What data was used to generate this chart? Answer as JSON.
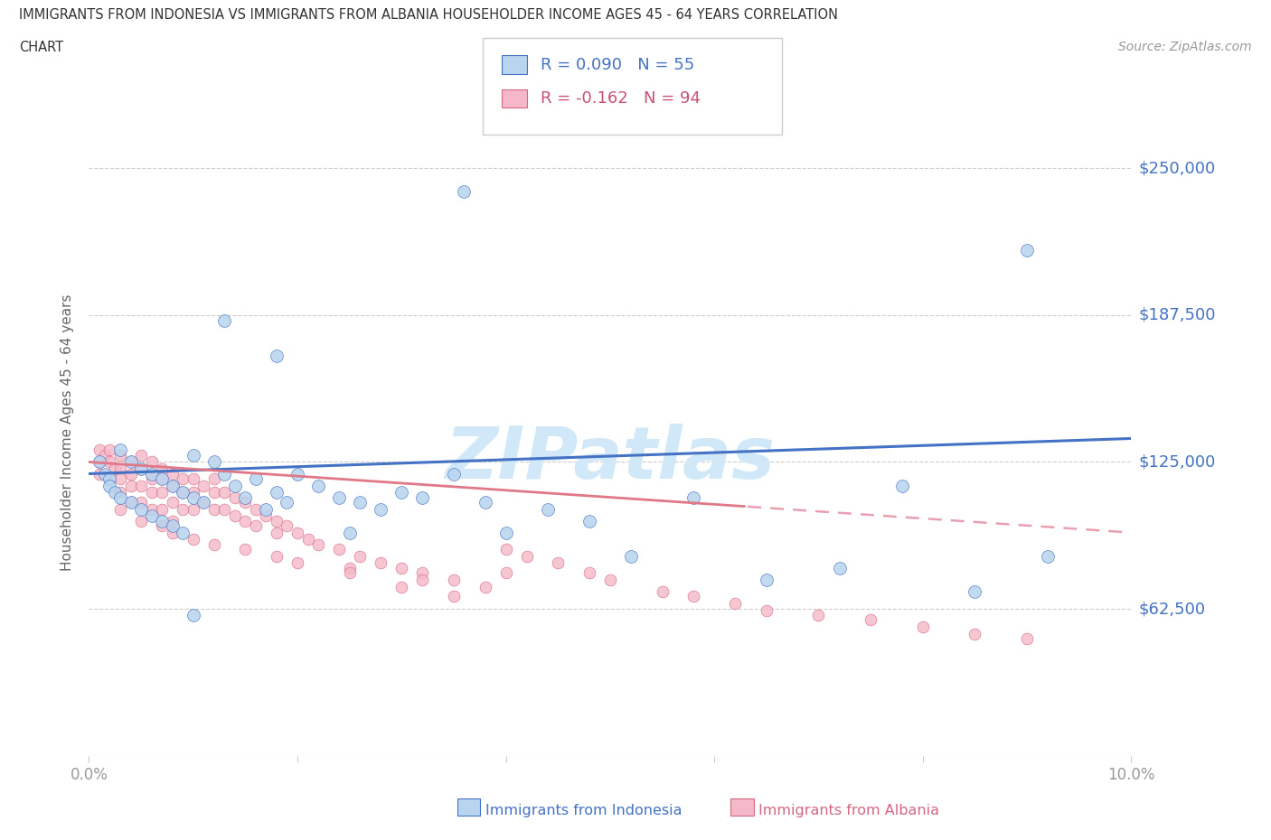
{
  "title_line1": "IMMIGRANTS FROM INDONESIA VS IMMIGRANTS FROM ALBANIA HOUSEHOLDER INCOME AGES 45 - 64 YEARS CORRELATION",
  "title_line2": "CHART",
  "source": "Source: ZipAtlas.com",
  "ylabel": "Householder Income Ages 45 - 64 years",
  "xlim": [
    0.0,
    0.1
  ],
  "ylim": [
    0,
    275000
  ],
  "ytick_vals": [
    0,
    62500,
    125000,
    187500,
    250000
  ],
  "ytick_labels": [
    "",
    "$62,500",
    "$125,000",
    "$187,500",
    "$250,000"
  ],
  "xtick_vals": [
    0.0,
    0.02,
    0.04,
    0.06,
    0.08,
    0.1
  ],
  "xtick_labels": [
    "0.0%",
    "",
    "",
    "",
    "",
    "10.0%"
  ],
  "R_indonesia": 0.09,
  "N_indonesia": 55,
  "R_albania": -0.162,
  "N_albania": 94,
  "color_indo_face": "#b8d4ee",
  "color_indo_edge": "#4472c4",
  "color_alba_face": "#f5b8c8",
  "color_alba_edge": "#d46880",
  "line_indo": "#4472c4",
  "line_alba_solid": "#e07888",
  "line_alba_dash": "#e8a0b0",
  "grid_color": "#cccccc",
  "title_color": "#333333",
  "ylabel_color": "#666666",
  "ytick_label_color": "#4472c4",
  "xtick_label_color": "#999999",
  "watermark_color": "#d0e8f8",
  "source_color": "#999999",
  "legend_R1_color": "#4472c4",
  "legend_R2_color": "#c85070",
  "legend_border": "#cccccc",
  "bottom_legend_indo_color": "#4472c4",
  "bottom_legend_alba_color": "#d46880",
  "indo_x": [
    0.001,
    0.0015,
    0.002,
    0.002,
    0.0025,
    0.003,
    0.003,
    0.004,
    0.004,
    0.005,
    0.005,
    0.006,
    0.006,
    0.007,
    0.007,
    0.008,
    0.008,
    0.009,
    0.009,
    0.01,
    0.01,
    0.011,
    0.012,
    0.013,
    0.014,
    0.015,
    0.016,
    0.017,
    0.018,
    0.019,
    0.02,
    0.022,
    0.024,
    0.026,
    0.028,
    0.03,
    0.032,
    0.035,
    0.038,
    0.04,
    0.044,
    0.048,
    0.052,
    0.058,
    0.065,
    0.072,
    0.078,
    0.085,
    0.092,
    0.036,
    0.09,
    0.013,
    0.018,
    0.025,
    0.01
  ],
  "indo_y": [
    125000,
    120000,
    118000,
    115000,
    112000,
    130000,
    110000,
    125000,
    108000,
    122000,
    105000,
    120000,
    102000,
    118000,
    100000,
    115000,
    98000,
    112000,
    95000,
    128000,
    110000,
    108000,
    125000,
    120000,
    115000,
    110000,
    118000,
    105000,
    112000,
    108000,
    120000,
    115000,
    110000,
    108000,
    105000,
    112000,
    110000,
    120000,
    108000,
    95000,
    105000,
    100000,
    85000,
    110000,
    75000,
    80000,
    115000,
    70000,
    85000,
    240000,
    215000,
    185000,
    170000,
    95000,
    60000
  ],
  "alba_x": [
    0.001,
    0.001,
    0.001,
    0.0015,
    0.002,
    0.002,
    0.002,
    0.0025,
    0.003,
    0.003,
    0.003,
    0.003,
    0.004,
    0.004,
    0.004,
    0.004,
    0.005,
    0.005,
    0.005,
    0.005,
    0.006,
    0.006,
    0.006,
    0.006,
    0.007,
    0.007,
    0.007,
    0.007,
    0.008,
    0.008,
    0.008,
    0.008,
    0.009,
    0.009,
    0.009,
    0.01,
    0.01,
    0.01,
    0.011,
    0.011,
    0.012,
    0.012,
    0.012,
    0.013,
    0.013,
    0.014,
    0.014,
    0.015,
    0.015,
    0.016,
    0.016,
    0.017,
    0.018,
    0.018,
    0.019,
    0.02,
    0.021,
    0.022,
    0.024,
    0.026,
    0.028,
    0.03,
    0.032,
    0.035,
    0.038,
    0.04,
    0.042,
    0.045,
    0.048,
    0.05,
    0.055,
    0.058,
    0.062,
    0.065,
    0.07,
    0.075,
    0.08,
    0.085,
    0.09,
    0.04,
    0.032,
    0.025,
    0.018,
    0.012,
    0.008,
    0.005,
    0.003,
    0.007,
    0.01,
    0.015,
    0.02,
    0.025,
    0.03,
    0.035
  ],
  "alba_y": [
    130000,
    125000,
    120000,
    128000,
    130000,
    125000,
    118000,
    122000,
    128000,
    122000,
    118000,
    112000,
    125000,
    120000,
    115000,
    108000,
    128000,
    122000,
    115000,
    108000,
    125000,
    118000,
    112000,
    105000,
    122000,
    118000,
    112000,
    105000,
    120000,
    115000,
    108000,
    100000,
    118000,
    112000,
    105000,
    118000,
    112000,
    105000,
    115000,
    108000,
    118000,
    112000,
    105000,
    112000,
    105000,
    110000,
    102000,
    108000,
    100000,
    105000,
    98000,
    102000,
    100000,
    95000,
    98000,
    95000,
    92000,
    90000,
    88000,
    85000,
    82000,
    80000,
    78000,
    75000,
    72000,
    88000,
    85000,
    82000,
    78000,
    75000,
    70000,
    68000,
    65000,
    62000,
    60000,
    58000,
    55000,
    52000,
    50000,
    78000,
    75000,
    80000,
    85000,
    90000,
    95000,
    100000,
    105000,
    98000,
    92000,
    88000,
    82000,
    78000,
    72000,
    68000
  ]
}
